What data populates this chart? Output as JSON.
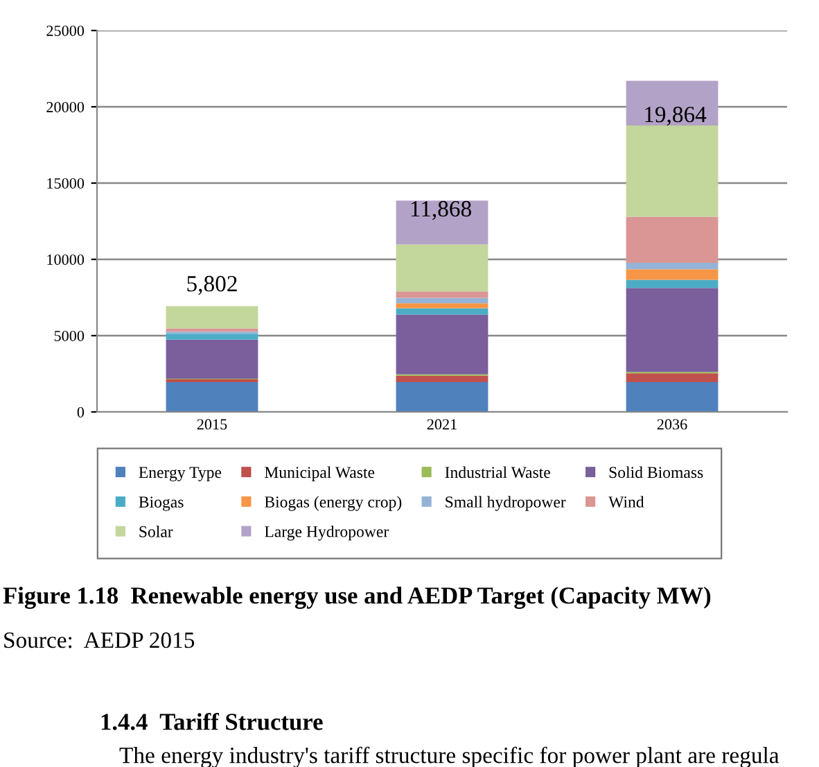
{
  "chart_data": {
    "type": "bar",
    "stacked": true,
    "title": "Figure 1.18  Renewable energy use and AEDP Target (Capacity MW)",
    "categories": [
      "2015",
      "2021",
      "2036"
    ],
    "series": [
      {
        "name": "Energy Type",
        "color": "#4f81bd",
        "values": [
          1960,
          1960,
          1960
        ]
      },
      {
        "name": "Municipal Waste",
        "color": "#c0504d",
        "values": [
          180,
          420,
          570
        ]
      },
      {
        "name": "Industrial Waste",
        "color": "#9bbb59",
        "values": [
          40,
          90,
          90
        ]
      },
      {
        "name": "Solid Biomass",
        "color": "#7a5f9c",
        "values": [
          2560,
          3900,
          5500
        ]
      },
      {
        "name": "Biogas",
        "color": "#4bacc6",
        "values": [
          380,
          420,
          540
        ]
      },
      {
        "name": "Biogas (energy crop)",
        "color": "#f79646",
        "values": [
          0,
          330,
          690
        ]
      },
      {
        "name": "Small hydropower",
        "color": "#95b3d7",
        "values": [
          140,
          360,
          420
        ]
      },
      {
        "name": "Wind",
        "color": "#d99694",
        "values": [
          220,
          420,
          3020
        ]
      },
      {
        "name": "Solar",
        "color": "#c3d69b",
        "values": [
          1450,
          3080,
          5980
        ]
      },
      {
        "name": "Large Hydropower",
        "color": "#b3a2c7",
        "values": [
          0,
          2870,
          2930
        ]
      }
    ],
    "ylim": [
      0,
      25000
    ],
    "yticks": [
      0,
      5000,
      10000,
      15000,
      20000,
      25000
    ],
    "grid": "y",
    "legend": "bottom",
    "annotations": [
      "5,802",
      "11,868",
      "19,864",
      "Source:  AEDP 2015",
      "1.4.4  Tariff Structure",
      "The energy industry's tariff structure specific for power plant are regula"
    ]
  }
}
